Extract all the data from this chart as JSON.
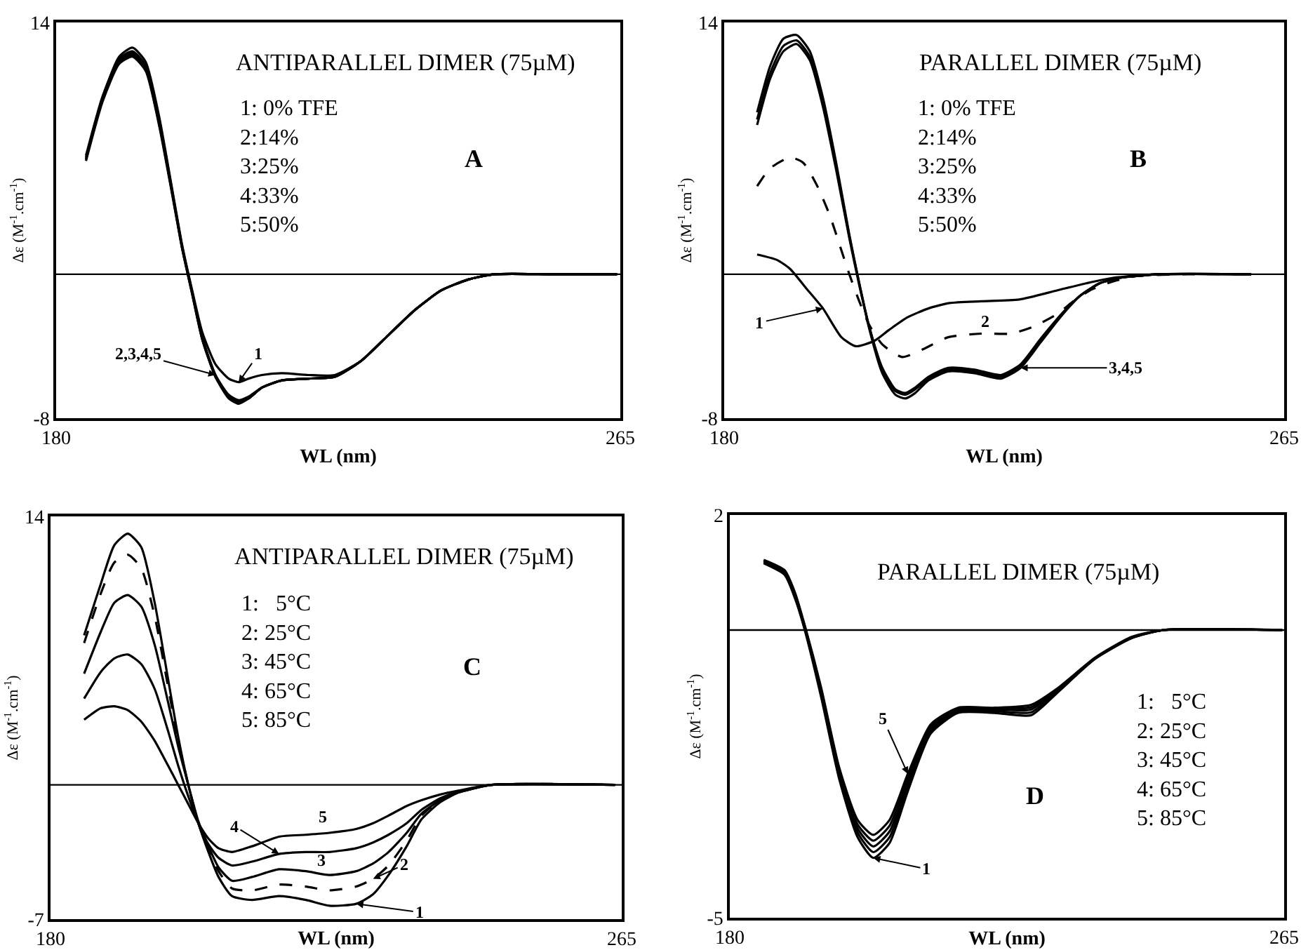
{
  "chart_data": [
    {
      "type": "line",
      "title": "ANTIPARALLEL DIMER (75µM)",
      "xlabel": "WL (nm)",
      "ylabel": "Δε (M$^{-1}$.cm$^{-1}$)",
      "xlim": [
        180,
        265
      ],
      "ylim": [
        -8,
        14
      ],
      "xticks": [
        180,
        265
      ],
      "yticks": [
        -8,
        14
      ],
      "marker": "none",
      "ref_lines": [
        {
          "axis": "y",
          "value": 0,
          "color": "#000000"
        }
      ],
      "annotations": [
        "1: 0% TFE\n2:14%\n3:25%\n4:33%\n5:50%",
        "A",
        {
          "text": "1",
          "x": 207.5,
          "y": -6.0
        },
        {
          "text": "2,3,4,5",
          "x": 204,
          "y": -5.6
        }
      ],
      "series": [
        {
          "color": "#000000",
          "line_style": "solid",
          "x": [
            184.5,
            187,
            189.5,
            191.5,
            193.5,
            195.5,
            197.5,
            199,
            200.5,
            202,
            204,
            206,
            207.5,
            209,
            211,
            214,
            218,
            222,
            226,
            230,
            234,
            238,
            242,
            246,
            255,
            264.5
          ],
          "values": [
            6.4,
            9.8,
            12.1,
            12.6,
            11.8,
            8.8,
            4.7,
            1.6,
            -0.9,
            -3.2,
            -5.0,
            -5.8,
            -6.0,
            -5.8,
            -5.6,
            -5.5,
            -5.6,
            -5.6,
            -4.8,
            -3.4,
            -2.0,
            -0.9,
            -0.3,
            0,
            0,
            0
          ]
        },
        {
          "color": "#000000",
          "line_style": "solid",
          "x": [
            184.5,
            187,
            189.5,
            191.5,
            193.5,
            195.5,
            197.5,
            199,
            200.5,
            202,
            204,
            206,
            207.5,
            209,
            211,
            214,
            218,
            222,
            226,
            230,
            234,
            238,
            242,
            246,
            255,
            264.5
          ],
          "values": [
            6.6,
            9.9,
            12.0,
            12.4,
            11.6,
            8.6,
            4.6,
            1.5,
            -1.0,
            -3.5,
            -5.6,
            -6.8,
            -7.1,
            -6.9,
            -6.3,
            -5.9,
            -5.8,
            -5.7,
            -4.8,
            -3.4,
            -2.0,
            -0.9,
            -0.3,
            0,
            0,
            0
          ]
        },
        {
          "color": "#000000",
          "line_style": "solid",
          "x": [
            184.5,
            187,
            189.5,
            191.5,
            193.5,
            195.5,
            197.5,
            199,
            200.5,
            202,
            204,
            206,
            207.5,
            209,
            211,
            214,
            218,
            222,
            226,
            230,
            234,
            238,
            242,
            246,
            255,
            264.5
          ],
          "values": [
            6.5,
            9.8,
            11.9,
            12.3,
            11.5,
            8.5,
            4.5,
            1.5,
            -1.0,
            -3.5,
            -5.6,
            -6.7,
            -7.0,
            -6.8,
            -6.3,
            -5.9,
            -5.8,
            -5.7,
            -4.8,
            -3.4,
            -2.0,
            -0.9,
            -0.3,
            0,
            0,
            0
          ]
        },
        {
          "color": "#000000",
          "line_style": "solid",
          "x": [
            184.5,
            187,
            189.5,
            191.5,
            193.5,
            195.5,
            197.5,
            199,
            200.5,
            202,
            204,
            206,
            207.5,
            209,
            211,
            214,
            218,
            222,
            226,
            230,
            234,
            238,
            242,
            246,
            255,
            264.5
          ],
          "values": [
            6.4,
            9.7,
            11.8,
            12.2,
            11.4,
            8.4,
            4.5,
            1.4,
            -1.1,
            -3.6,
            -5.7,
            -6.8,
            -7.1,
            -6.9,
            -6.3,
            -5.9,
            -5.8,
            -5.7,
            -4.8,
            -3.4,
            -2.0,
            -0.9,
            -0.3,
            0,
            0,
            0
          ]
        },
        {
          "color": "#000000",
          "line_style": "solid",
          "x": [
            184.5,
            187,
            189.5,
            191.5,
            193.5,
            195.5,
            197.5,
            199,
            200.5,
            202,
            204,
            206,
            207.5,
            209,
            211,
            214,
            218,
            222,
            226,
            230,
            234,
            238,
            242,
            246,
            255,
            264.5
          ],
          "values": [
            6.3,
            9.6,
            11.7,
            12.1,
            11.3,
            8.3,
            4.4,
            1.4,
            -1.1,
            -3.6,
            -5.7,
            -6.9,
            -7.2,
            -6.9,
            -6.3,
            -5.9,
            -5.8,
            -5.7,
            -4.8,
            -3.4,
            -2.0,
            -0.9,
            -0.3,
            0,
            0,
            0
          ]
        }
      ]
    },
    {
      "type": "line",
      "title": "PARALLEL DIMER (75µM)",
      "xlabel": "WL (nm)",
      "ylabel": "Δε (M$^{-1}$.cm$^{-1}$)",
      "xlim": [
        180,
        265
      ],
      "ylim": [
        -8,
        14
      ],
      "xticks": [
        180,
        265
      ],
      "yticks": [
        -8,
        14
      ],
      "marker": "none",
      "ref_lines": [
        {
          "axis": "y",
          "value": 0,
          "color": "#000000"
        }
      ],
      "annotations": [
        "1: 0% TFE\n2:14%\n3:25%\n4:33%\n5:50%",
        "B",
        {
          "text": "1",
          "x": 195,
          "y": -1.9
        },
        {
          "text": "2",
          "x": 219.6,
          "y": -3.3
        },
        {
          "text": "3,4,5",
          "x": 225,
          "y": -5.2
        }
      ],
      "series": [
        {
          "color": "#000000",
          "line_style": "solid",
          "x": [
            185,
            188,
            190,
            192.5,
            195,
            197.8,
            200,
            202.8,
            205,
            207.8,
            211,
            214.2,
            219,
            224.8,
            230.5,
            235,
            239,
            246,
            260
          ],
          "values": [
            1.1,
            0.8,
            0.3,
            -0.8,
            -1.9,
            -3.5,
            -4.0,
            -3.7,
            -3.1,
            -2.4,
            -1.9,
            -1.6,
            -1.5,
            -1.4,
            -0.9,
            -0.5,
            -0.2,
            0,
            0
          ]
        },
        {
          "color": "#000000",
          "line_style": "dashed",
          "x": [
            185,
            187,
            190,
            192,
            194,
            196,
            198,
            199,
            200.5,
            202,
            204,
            207,
            210,
            214,
            219,
            223.5,
            227,
            230.6,
            233,
            235.5,
            239,
            242.6,
            250,
            260
          ],
          "values": [
            4.9,
            5.9,
            6.5,
            6.2,
            5.0,
            3.3,
            1.1,
            0,
            -1.5,
            -2.8,
            -3.9,
            -4.6,
            -4.2,
            -3.5,
            -3.3,
            -3.3,
            -2.9,
            -2.2,
            -1.5,
            -0.9,
            -0.4,
            -0.1,
            0,
            0
          ]
        },
        {
          "color": "#000000",
          "line_style": "solid",
          "x": [
            185,
            187,
            189,
            191,
            193,
            195,
            197,
            199,
            200.5,
            202,
            204,
            206,
            207.5,
            209,
            211,
            214,
            218,
            222,
            225,
            228,
            231,
            234,
            237,
            240,
            246,
            260
          ],
          "values": [
            8.3,
            10.9,
            12.4,
            12.8,
            11.9,
            9.3,
            5.8,
            2.0,
            -0.6,
            -2.9,
            -5.2,
            -6.4,
            -6.6,
            -6.3,
            -5.7,
            -5.2,
            -5.3,
            -5.6,
            -5.0,
            -3.6,
            -2.3,
            -1.2,
            -0.5,
            -0.2,
            0,
            0
          ]
        },
        {
          "color": "#000000",
          "line_style": "solid",
          "x": [
            185,
            187,
            189,
            191,
            193,
            195,
            197,
            199,
            200.5,
            202,
            204,
            206,
            207.5,
            209,
            211,
            214,
            218,
            222,
            225,
            228,
            231,
            234,
            237,
            240,
            246,
            260
          ],
          "values": [
            8.6,
            11.2,
            12.7,
            13.0,
            12.1,
            9.5,
            6.0,
            2.1,
            -0.5,
            -2.9,
            -5.3,
            -6.5,
            -6.7,
            -6.4,
            -5.8,
            -5.3,
            -5.4,
            -5.7,
            -5.1,
            -3.7,
            -2.3,
            -1.2,
            -0.5,
            -0.2,
            0,
            0
          ]
        },
        {
          "color": "#000000",
          "line_style": "solid",
          "x": [
            185,
            187,
            189,
            191,
            193,
            195,
            197,
            199,
            200.5,
            202,
            204,
            206,
            207.5,
            209,
            211,
            214,
            218,
            222,
            225,
            228,
            231,
            234,
            237,
            240,
            246,
            260
          ],
          "values": [
            9.0,
            11.6,
            13.1,
            13.3,
            12.4,
            9.8,
            6.2,
            2.2,
            -0.5,
            -3.0,
            -5.5,
            -6.7,
            -6.9,
            -6.6,
            -5.9,
            -5.4,
            -5.5,
            -5.8,
            -5.2,
            -3.8,
            -2.4,
            -1.2,
            -0.5,
            -0.2,
            0,
            0
          ]
        }
      ]
    },
    {
      "type": "line",
      "title": "ANTIPARALLEL DIMER (75µM)",
      "xlabel": "WL (nm)",
      "ylabel": "Δε (M$^{-1}$.cm$^{-1}$)",
      "xlim": [
        180,
        265
      ],
      "ylim": [
        -7,
        14
      ],
      "xticks": [
        180,
        265
      ],
      "yticks": [
        -7,
        14
      ],
      "marker": "none",
      "ref_lines": [
        {
          "axis": "y",
          "value": 0,
          "color": "#000000"
        }
      ],
      "annotations": [
        "1:   5°C\n2: 25°C\n3: 45°C\n4: 65°C\n5: 85°C",
        "C",
        {
          "text": "1",
          "x": 225.5,
          "y": -6.2
        },
        {
          "text": "2",
          "x": 228,
          "y": -4.9
        },
        {
          "text": "3",
          "x": 220.3,
          "y": -4.6
        },
        {
          "text": "4",
          "x": 214,
          "y": -3.6
        },
        {
          "text": "5",
          "x": 220.6,
          "y": -2.5
        }
      ],
      "series": [
        {
          "color": "#000000",
          "line_style": "solid",
          "x": [
            185,
            187.5,
            189.5,
            191.5,
            193.5,
            195.5,
            197.5,
            199,
            200.5,
            202,
            203.5,
            205,
            207,
            210,
            214,
            218,
            221.5,
            225.5,
            228,
            230.3,
            233,
            235.2,
            238,
            240.7,
            245.6,
            264
          ],
          "values": [
            7.8,
            10.5,
            12.5,
            13.1,
            12.4,
            9.5,
            5.5,
            2.5,
            0,
            -2.0,
            -3.5,
            -4.8,
            -5.8,
            -6.0,
            -5.8,
            -6.0,
            -6.3,
            -6.2,
            -5.7,
            -4.7,
            -3.2,
            -1.8,
            -0.9,
            -0.4,
            0,
            0
          ]
        },
        {
          "color": "#000000",
          "line_style": "dashed",
          "x": [
            185,
            187.5,
            189.5,
            191.5,
            193.5,
            195.5,
            197.5,
            199,
            200.5,
            202,
            203.5,
            205,
            207,
            210,
            214,
            218,
            221.5,
            225.5,
            228,
            230.3,
            233,
            235.2,
            238,
            240.7,
            245.6,
            264
          ],
          "values": [
            7.4,
            10.0,
            11.6,
            12.0,
            11.3,
            8.8,
            5.1,
            2.3,
            0,
            -2.0,
            -3.4,
            -4.5,
            -5.4,
            -5.5,
            -5.2,
            -5.3,
            -5.5,
            -5.3,
            -4.9,
            -4.2,
            -2.9,
            -1.6,
            -0.8,
            -0.4,
            0,
            0
          ]
        },
        {
          "color": "#000000",
          "line_style": "solid",
          "x": [
            185,
            187.5,
            189.5,
            191.5,
            193.5,
            195.5,
            197.5,
            199,
            200.5,
            202,
            203.5,
            205,
            207,
            210,
            214,
            218,
            221.5,
            225.5,
            228,
            230.3,
            233,
            235.2,
            238,
            240.7,
            245.6,
            264
          ],
          "values": [
            5.8,
            8.0,
            9.5,
            9.9,
            9.3,
            7.3,
            4.3,
            2.0,
            0,
            -1.9,
            -3.2,
            -4.3,
            -5.0,
            -4.8,
            -4.4,
            -4.5,
            -4.7,
            -4.5,
            -4.1,
            -3.5,
            -2.5,
            -1.5,
            -0.8,
            -0.4,
            0,
            0
          ]
        },
        {
          "color": "#000000",
          "line_style": "solid",
          "x": [
            185,
            187.5,
            189.5,
            191.5,
            193.5,
            195.5,
            197.5,
            199,
            200.5,
            202,
            203.5,
            205,
            207,
            210,
            214,
            218,
            221.5,
            225.5,
            228,
            230.3,
            233,
            235.2,
            238,
            240.7,
            245.6,
            264
          ],
          "values": [
            4.5,
            5.9,
            6.6,
            6.8,
            6.3,
            5.0,
            2.8,
            1.0,
            -0.6,
            -2.0,
            -3.1,
            -3.8,
            -4.2,
            -4.0,
            -3.6,
            -3.5,
            -3.5,
            -3.3,
            -3.0,
            -2.6,
            -2.0,
            -1.3,
            -0.7,
            -0.35,
            0,
            0
          ]
        },
        {
          "color": "#000000",
          "line_style": "solid",
          "x": [
            185,
            187.5,
            189.5,
            191.5,
            193.5,
            195.5,
            197.5,
            199,
            200.5,
            202,
            203.5,
            205,
            207,
            210,
            214,
            218,
            221.5,
            225.5,
            228,
            230.3,
            233,
            235.2,
            238,
            240.7,
            245.6,
            264
          ],
          "values": [
            3.4,
            4.0,
            4.1,
            3.9,
            3.3,
            2.3,
            1.0,
            0,
            -1.0,
            -2.0,
            -2.8,
            -3.3,
            -3.5,
            -3.2,
            -2.7,
            -2.6,
            -2.5,
            -2.3,
            -2.0,
            -1.6,
            -1.1,
            -0.8,
            -0.5,
            -0.3,
            0,
            0
          ]
        }
      ]
    },
    {
      "type": "line",
      "title": "PARALLEL DIMER (75µM)",
      "xlabel": "WL (nm)",
      "ylabel": "Δε (M$^{-1}$.cm$^{-1}$)",
      "xlim": [
        180,
        265
      ],
      "ylim": [
        -5,
        2
      ],
      "xticks": [
        180,
        265
      ],
      "yticks": [
        -5,
        2
      ],
      "marker": "none",
      "ref_lines": [
        {
          "axis": "y",
          "value": 0,
          "color": "#000000"
        }
      ],
      "annotations": [
        "1:   5°C\n2: 25°C\n3: 45°C\n4: 65°C\n5: 85°C",
        "D",
        {
          "text": "5",
          "x": 207.3,
          "y": -2.5
        },
        {
          "text": "1",
          "x": 202,
          "y": -3.96
        }
      ],
      "series": [
        {
          "color": "#000000",
          "line_style": "solid",
          "x": [
            185.2,
            188.4,
            190,
            191.5,
            194,
            196.8,
            199.6,
            202,
            204.5,
            207.3,
            210.8,
            215,
            220.6,
            226.2,
            230.4,
            236,
            241.6,
            246.5,
            264.7
          ],
          "values": [
            1.16,
            0.96,
            0.55,
            0,
            -1.16,
            -2.6,
            -3.6,
            -3.96,
            -3.7,
            -2.8,
            -1.8,
            -1.44,
            -1.44,
            -1.48,
            -1.07,
            -0.5,
            -0.14,
            0,
            0
          ]
        },
        {
          "color": "#000000",
          "line_style": "solid",
          "x": [
            185.2,
            188.4,
            190,
            191.5,
            194,
            196.8,
            199.6,
            202,
            204.5,
            207.3,
            210.8,
            215,
            220.6,
            226.2,
            230.4,
            236,
            241.6,
            246.5,
            264.7
          ],
          "values": [
            1.18,
            0.98,
            0.57,
            0.02,
            -1.12,
            -2.55,
            -3.52,
            -3.86,
            -3.6,
            -2.72,
            -1.76,
            -1.42,
            -1.41,
            -1.43,
            -1.05,
            -0.5,
            -0.14,
            0,
            0
          ]
        },
        {
          "color": "#000000",
          "line_style": "solid",
          "x": [
            185.2,
            188.4,
            190,
            191.5,
            194,
            196.8,
            199.6,
            202,
            204.5,
            207.3,
            210.8,
            215,
            220.6,
            226.2,
            230.4,
            236,
            241.6,
            246.5,
            264.7
          ],
          "values": [
            1.2,
            1.0,
            0.6,
            0.04,
            -1.08,
            -2.5,
            -3.45,
            -3.76,
            -3.5,
            -2.65,
            -1.72,
            -1.4,
            -1.38,
            -1.38,
            -1.03,
            -0.49,
            -0.13,
            0,
            0
          ]
        },
        {
          "color": "#000000",
          "line_style": "solid",
          "x": [
            185.2,
            188.4,
            190,
            191.5,
            194,
            196.8,
            199.6,
            202,
            204.5,
            207.3,
            210.8,
            215,
            220.6,
            226.2,
            230.4,
            236,
            241.6,
            246.5,
            264.7
          ],
          "values": [
            1.21,
            1.02,
            0.62,
            0.06,
            -1.04,
            -2.45,
            -3.38,
            -3.66,
            -3.4,
            -2.58,
            -1.68,
            -1.37,
            -1.36,
            -1.34,
            -1.01,
            -0.49,
            -0.13,
            0,
            0
          ]
        },
        {
          "color": "#000000",
          "line_style": "solid",
          "x": [
            185.2,
            188.4,
            190,
            191.5,
            194,
            196.8,
            199.6,
            202,
            204.5,
            207.3,
            210.8,
            215,
            220.6,
            226.2,
            230.4,
            236,
            241.6,
            246.5,
            264.7
          ],
          "values": [
            1.22,
            1.04,
            0.65,
            0.08,
            -1.0,
            -2.4,
            -3.3,
            -3.56,
            -3.3,
            -2.5,
            -1.64,
            -1.35,
            -1.35,
            -1.3,
            -1.0,
            -0.48,
            -0.12,
            0,
            0
          ]
        }
      ]
    }
  ]
}
